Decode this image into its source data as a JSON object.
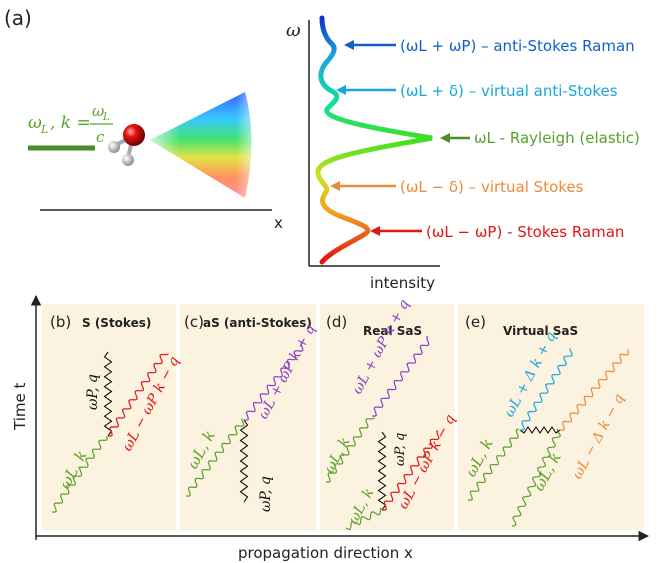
{
  "panel_a": {
    "tag": "(a)",
    "incident_formula": "ωL , k = ωL / c",
    "incident_omega": "ω",
    "incident_sub": "L",
    "incident_k": ", k =",
    "incident_num": "ω",
    "incident_num_sub": "L",
    "incident_den": "c",
    "x_axis_label": "x",
    "y_axis_label": "ω",
    "intensity_label": "intensity",
    "peaks": [
      {
        "text": "(ωL + ωP) – anti-Stokes Raman",
        "color": "#1060c8"
      },
      {
        "text": "(ωL + δ) – virtual anti-Stokes",
        "color": "#19a6dc"
      },
      {
        "text": "ωL - Rayleigh (elastic)",
        "color": "#5aa02c"
      },
      {
        "text": "(ωL − δ) – virtual Stokes",
        "color": "#ec8a3c"
      },
      {
        "text": "(ωL − ωP) - Stokes Raman",
        "color": "#e01515"
      }
    ]
  },
  "bottom": {
    "y_axis_label": "Time t",
    "x_axis_label": "propagation direction x",
    "panels": [
      {
        "tag": "(b)",
        "title": "S (Stokes)"
      },
      {
        "tag": "(c)",
        "title": "aS (anti-Stokes)"
      },
      {
        "tag": "(d)",
        "title": "Real SaS"
      },
      {
        "tag": "(e)",
        "title": "Virtual SaS"
      }
    ],
    "wave_labels": {
      "b_green": "ωL, k",
      "b_black": "ωP, q",
      "b_red": "ωL − ωP  k − q",
      "c_green": "ωL, k",
      "c_black": "ωP, q",
      "c_purple": "ωL + ωP  k + q",
      "d_green1": "ωL, k",
      "d_green2": "ωL, k",
      "d_black": "ωP, q",
      "d_purple": "ωL + ωP  k + q",
      "d_red": "ωL − ωP  k − q",
      "e_green1": "ωL, k",
      "e_green2": "ωL, k",
      "e_blue": "ωL + Δ  k + q",
      "e_orange": "ωL − Δ  k − q"
    }
  },
  "colors": {
    "green": "#5aa02c",
    "red": "#e01515",
    "purple": "#8a3fc4",
    "blue": "#19a6dc",
    "orange": "#ec8a3c",
    "panel_bg": "#fbf3df"
  }
}
